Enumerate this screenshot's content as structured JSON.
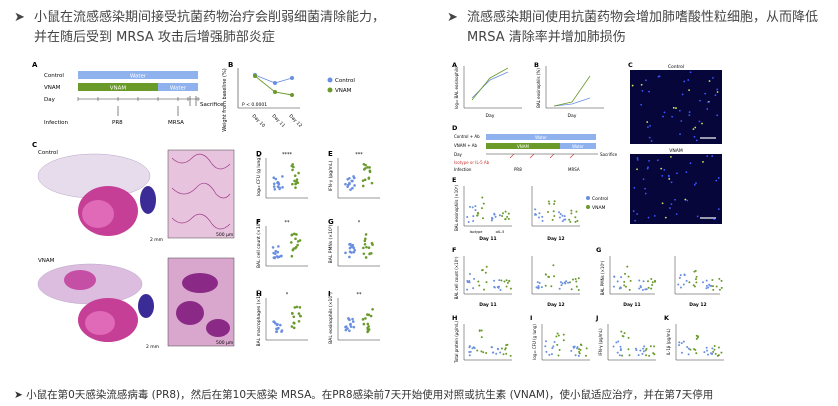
{
  "left_heading": {
    "line1": "小鼠在流感感染期间接受抗菌药物治疗会削弱细菌清除能力，",
    "line2": "并在随后受到 MRSA 攻击后增强肺部炎症"
  },
  "right_heading": {
    "line1": "流感感染期间使用抗菌药物会增加肺嗜酸性粒细胞，从而降低",
    "line2": "MRSA 清除率并增加肺损伤"
  },
  "footnote": "小鼠在第0天感染流感病毒 (PR8)，然后在第10天感染 MRSA。在PR8感染前7天开始使用对照或抗生素 (VNAM)，使小鼠适应治疗，并在第7天停用",
  "colors": {
    "control": "#6a8fe0",
    "vnam": "#6a9a2a",
    "water": "#8fb2ee",
    "heading": "#444"
  },
  "left_figure": {
    "panel_a": {
      "letter": "A",
      "rows": [
        "Control",
        "VNAM",
        "Day"
      ],
      "bar_water": "Water",
      "bar_vnam": "VNAM",
      "bar_water2": "Water",
      "events": [
        "Infection",
        "PR8",
        "MRSA",
        "Sacrifice"
      ]
    },
    "panel_b": {
      "letter": "B",
      "ylabel": "Weight from baseline (%)",
      "pvalue": "P < 0.0001",
      "xticks": [
        "Day 10",
        "Day 11",
        "Day 12"
      ],
      "legend": [
        "Control",
        "VNAM"
      ]
    },
    "panel_c": {
      "letter": "C",
      "label_control": "Control",
      "label_vnam": "VNAM",
      "scale_2mm": "2 mm",
      "scale_500um": "500 μm"
    },
    "panel_d": {
      "letter": "D",
      "ylabel": "log₁₀ CFU (g lung)",
      "sig": "****"
    },
    "panel_e": {
      "letter": "E",
      "ylabel": "IFN-γ (pg/mL)",
      "sig": "***"
    },
    "panel_f": {
      "letter": "F",
      "ylabel": "BAL cell count (×10⁵)",
      "sig": "**"
    },
    "panel_g": {
      "letter": "G",
      "ylabel": "BAL PMNs (×10⁵)",
      "sig": "*"
    },
    "panel_h": {
      "letter": "H",
      "ylabel": "BAL macrophages (×10⁴)",
      "sig": "*"
    },
    "panel_i": {
      "letter": "I",
      "ylabel": "BAL eosinophils (×10⁴)",
      "sig": "**"
    }
  },
  "right_figure": {
    "panel_a": {
      "letter": "A",
      "ylabel": "log₁₀ BAL eosinophils",
      "xlabel": "Day"
    },
    "panel_b": {
      "letter": "B",
      "ylabel": "BAL eosinophils (%)",
      "xlabel": "Day"
    },
    "panel_c": {
      "letter": "C",
      "label_control": "Control",
      "label_vnam": "VNAM"
    },
    "panel_d": {
      "letter": "D",
      "rows": [
        "Control + Ab",
        "VNAM + Ab",
        "Day"
      ],
      "bar_water": "Water",
      "bar_vnam": "VNAM",
      "bar_water2": "Water",
      "events": [
        "Isotype or IL-5 Ab",
        "Infection",
        "PR8",
        "MRSA",
        "Sacrifice"
      ]
    },
    "panel_e": {
      "letter": "E",
      "ylabel": "BAL eosinophils (×10⁵)",
      "days": [
        "Day 11",
        "Day 12"
      ],
      "legend": [
        "Control",
        "VNAM"
      ],
      "groups": [
        "Isotype",
        "αIL-5"
      ]
    },
    "panel_f": {
      "letter": "F",
      "ylabel": "BAL cell count (×10⁵)",
      "days": [
        "Day 11",
        "Day 12"
      ]
    },
    "panel_g": {
      "letter": "G",
      "ylabel": "BAL PMNs (×10⁵)",
      "days": [
        "Day 11",
        "Day 12"
      ]
    },
    "panel_h": {
      "letter": "H",
      "ylabel": "Total protein (μg/mL)"
    },
    "panel_i": {
      "letter": "I",
      "ylabel": "log₁₀ CFU (g lung)"
    },
    "panel_j": {
      "letter": "J",
      "ylabel": "IFN-γ (pg/mL)"
    },
    "panel_k": {
      "letter": "K",
      "ylabel": "IL-1β (pg/mL)"
    }
  }
}
